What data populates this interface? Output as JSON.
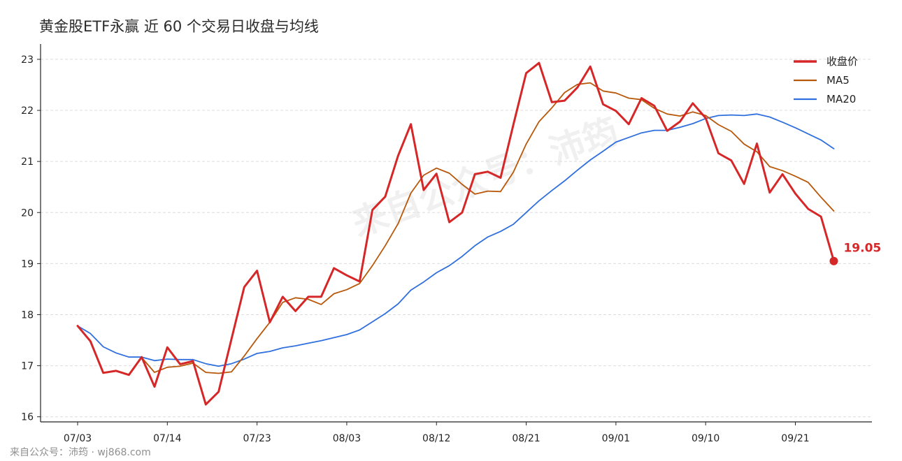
{
  "watermark_text": "来自公众号：沛筠",
  "footer_text": "来自公众号：沛筠 · wj868.com",
  "chart_data": {
    "type": "line",
    "title": "黄金股ETF永赢 近 60 个交易日收盘与均线",
    "xlabel": "",
    "ylabel": "",
    "x_tick_labels": [
      "07/03",
      "07/14",
      "07/23",
      "08/03",
      "08/12",
      "08/21",
      "09/01",
      "09/10",
      "09/21"
    ],
    "x_tick_indices": [
      0,
      7,
      14,
      21,
      28,
      35,
      42,
      49,
      56
    ],
    "ylim": [
      15.9,
      23.3
    ],
    "y_ticks": [
      16,
      17,
      18,
      19,
      20,
      21,
      22,
      23
    ],
    "grid": "horizontal-dashed",
    "legend_position": "top-right",
    "end_label": "19.05",
    "series": [
      {
        "name": "收盘价",
        "color": "#d62728",
        "width": 3,
        "values": [
          17.78,
          17.48,
          16.86,
          16.9,
          16.82,
          17.17,
          16.59,
          17.36,
          17.03,
          17.09,
          16.24,
          16.49,
          17.52,
          18.54,
          18.86,
          17.85,
          18.35,
          18.07,
          18.35,
          18.35,
          18.91,
          18.77,
          18.65,
          20.05,
          20.31,
          21.11,
          21.73,
          20.44,
          20.76,
          19.81,
          20.0,
          20.75,
          20.8,
          20.68,
          21.72,
          22.73,
          22.93,
          22.16,
          22.19,
          22.45,
          22.86,
          22.12,
          21.99,
          21.73,
          22.24,
          22.09,
          21.6,
          21.78,
          22.14,
          21.85,
          21.16,
          21.02,
          20.56,
          21.35,
          20.39,
          20.75,
          20.37,
          20.07,
          19.92,
          19.05
        ]
      },
      {
        "name": "MA5",
        "color": "#b8580a",
        "width": 1.8,
        "values": [
          17.78,
          17.48,
          16.86,
          16.9,
          16.82,
          17.16,
          16.87,
          16.97,
          16.99,
          17.05,
          16.87,
          16.85,
          16.88,
          17.19,
          17.53,
          17.85,
          18.24,
          18.33,
          18.3,
          18.2,
          18.41,
          18.49,
          18.61,
          18.96,
          19.35,
          19.78,
          20.38,
          20.73,
          20.87,
          20.77,
          20.55,
          20.36,
          20.42,
          20.41,
          20.79,
          21.34,
          21.78,
          22.05,
          22.35,
          22.51,
          22.54,
          22.38,
          22.34,
          22.24,
          22.21,
          22.04,
          21.93,
          21.89,
          21.97,
          21.9,
          21.72,
          21.59,
          21.34,
          21.19,
          20.9,
          20.82,
          20.71,
          20.59,
          20.3,
          20.03
        ]
      },
      {
        "name": "MA20",
        "color": "#2f6fde",
        "width": 1.8,
        "values": [
          17.78,
          17.63,
          17.37,
          17.25,
          17.17,
          17.17,
          17.1,
          17.13,
          17.12,
          17.12,
          17.04,
          16.99,
          17.04,
          17.13,
          17.24,
          17.28,
          17.35,
          17.39,
          17.44,
          17.49,
          17.55,
          17.61,
          17.7,
          17.86,
          18.02,
          18.21,
          18.48,
          18.64,
          18.82,
          18.96,
          19.14,
          19.35,
          19.52,
          19.63,
          19.77,
          20.0,
          20.23,
          20.43,
          20.62,
          20.83,
          21.03,
          21.2,
          21.38,
          21.47,
          21.56,
          21.61,
          21.61,
          21.67,
          21.74,
          21.84,
          21.9,
          21.91,
          21.9,
          21.93,
          21.87,
          21.77,
          21.66,
          21.54,
          21.42,
          21.25
        ]
      }
    ]
  }
}
